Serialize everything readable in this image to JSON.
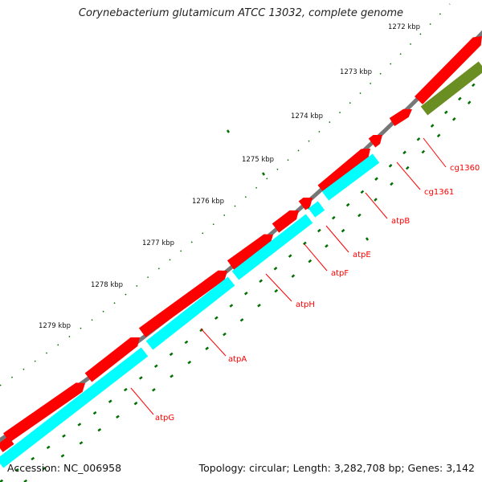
{
  "title": "Corynebacterium glutamicum ATCC 13032, complete genome",
  "accession_label": "Accession: NC_006958",
  "summary_label": "Topology: circular; Length: 3,282,708 bp; Genes: 3,142",
  "colors": {
    "backbone": "#777777",
    "forward_cds": "#ff0000",
    "reverse_cds": "#00ffff",
    "other_cds": "#6b8e23",
    "tick": "#007000",
    "gene_label": "#ff0000",
    "scale_label": "#111111"
  },
  "scale_labels": [
    "1272 kbp",
    "1273 kbp",
    "1274 kbp",
    "1275 kbp",
    "1276 kbp",
    "1277 kbp",
    "1278 kbp",
    "1279 kbp"
  ],
  "gene_labels": [
    "cg1360",
    "cg1361",
    "atpB",
    "atpE",
    "atpF",
    "atpH",
    "atpA",
    "atpG"
  ]
}
